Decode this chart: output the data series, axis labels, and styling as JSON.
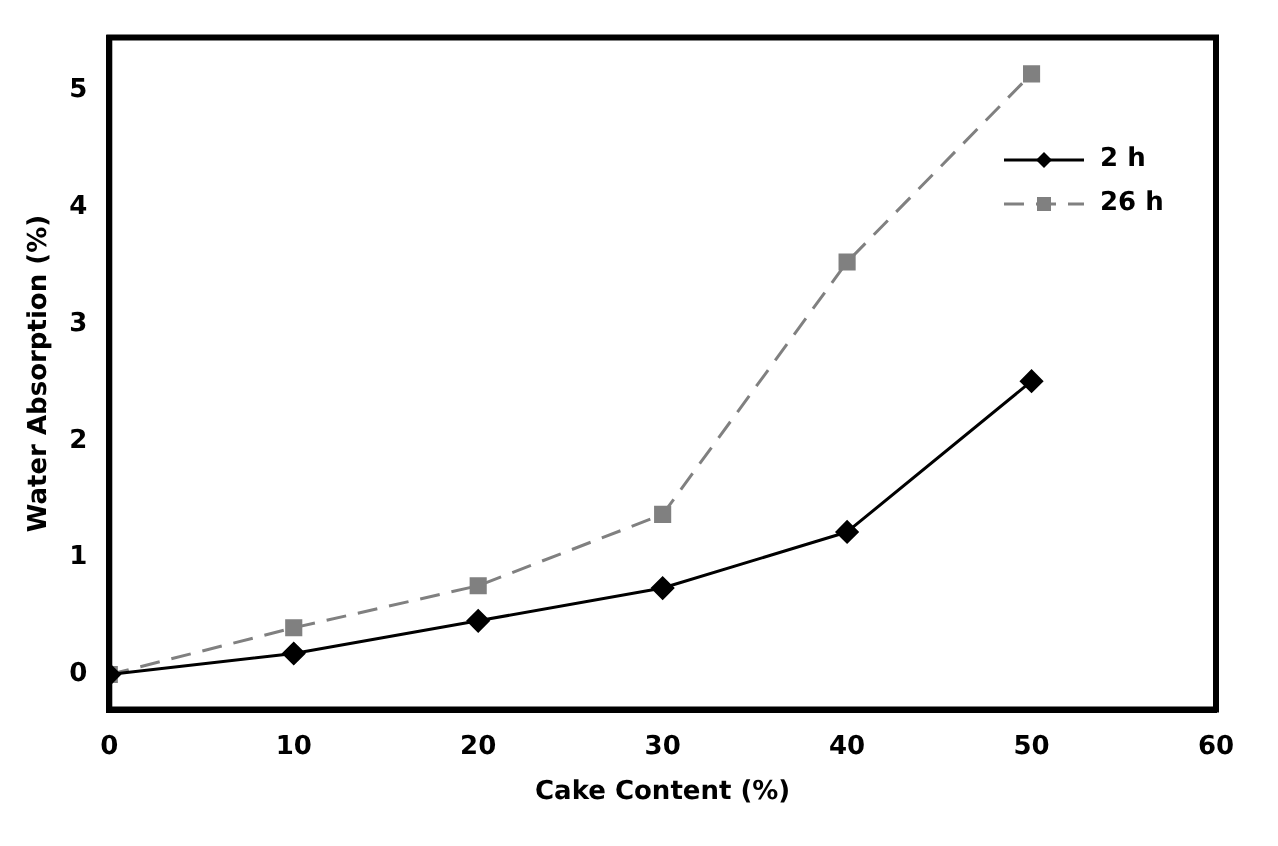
{
  "chart_data": {
    "type": "line",
    "xlabel": "Cake Content (%)",
    "ylabel": "Water Absorption (%)",
    "x": [
      0,
      10,
      20,
      30,
      40,
      50
    ],
    "series": [
      {
        "name": "2 h",
        "color": "#000000",
        "marker": "diamond",
        "line_style": "solid",
        "values": [
          0,
          0.18,
          0.46,
          0.74,
          1.22,
          2.51
        ]
      },
      {
        "name": "26 h",
        "color": "#808080",
        "marker": "square",
        "line_style": "dashed",
        "values": [
          0,
          0.4,
          0.76,
          1.37,
          3.53,
          5.14
        ]
      }
    ],
    "xlim": [
      0,
      60
    ],
    "xticks": [
      0,
      10,
      20,
      30,
      40,
      50,
      60
    ],
    "ylim": [
      -0.3,
      5.45
    ],
    "yticks": [
      0,
      1,
      2,
      3,
      4,
      5
    ],
    "grid": false,
    "legend": "top right"
  }
}
